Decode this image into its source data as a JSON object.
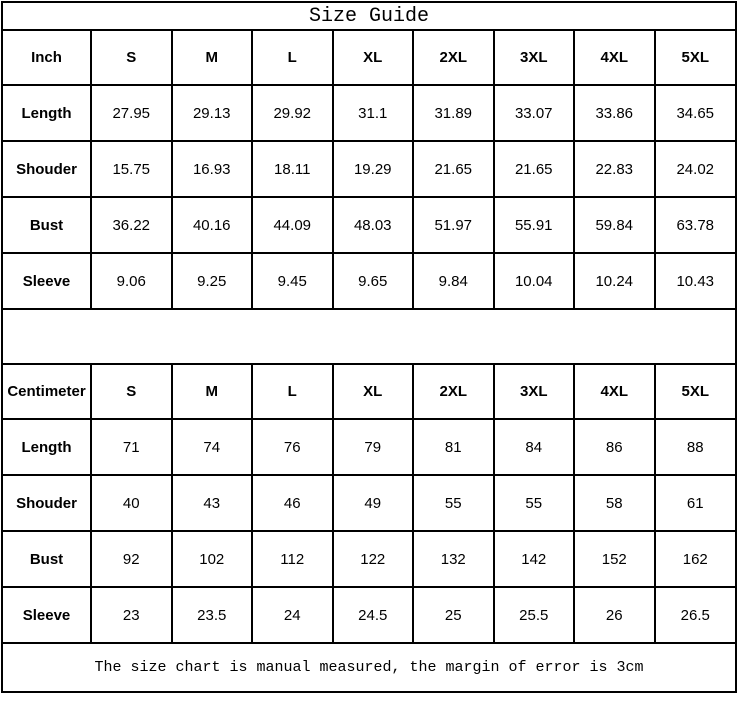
{
  "title": "Size Guide",
  "footer_note": "The size chart is manual measured, the margin of error is 3cm",
  "colors": {
    "text": "#000000",
    "border": "#000000",
    "background": "#ffffff"
  },
  "inch_table": {
    "unit": "Inch",
    "sizes": [
      "S",
      "M",
      "L",
      "XL",
      "2XL",
      "3XL",
      "4XL",
      "5XL"
    ],
    "rows": [
      {
        "label": "Length",
        "values": [
          "27.95",
          "29.13",
          "29.92",
          "31.1",
          "31.89",
          "33.07",
          "33.86",
          "34.65"
        ]
      },
      {
        "label": "Shouder",
        "values": [
          "15.75",
          "16.93",
          "18.11",
          "19.29",
          "21.65",
          "21.65",
          "22.83",
          "24.02"
        ]
      },
      {
        "label": "Bust",
        "values": [
          "36.22",
          "40.16",
          "44.09",
          "48.03",
          "51.97",
          "55.91",
          "59.84",
          "63.78"
        ]
      },
      {
        "label": "Sleeve",
        "values": [
          "9.06",
          "9.25",
          "9.45",
          "9.65",
          "9.84",
          "10.04",
          "10.24",
          "10.43"
        ]
      }
    ]
  },
  "cm_table": {
    "unit": "Centimeter",
    "sizes": [
      "S",
      "M",
      "L",
      "XL",
      "2XL",
      "3XL",
      "4XL",
      "5XL"
    ],
    "rows": [
      {
        "label": "Length",
        "values": [
          "71",
          "74",
          "76",
          "79",
          "81",
          "84",
          "86",
          "88"
        ]
      },
      {
        "label": "Shouder",
        "values": [
          "40",
          "43",
          "46",
          "49",
          "55",
          "55",
          "58",
          "61"
        ]
      },
      {
        "label": "Bust",
        "values": [
          "92",
          "102",
          "112",
          "122",
          "132",
          "142",
          "152",
          "162"
        ]
      },
      {
        "label": "Sleeve",
        "values": [
          "23",
          "23.5",
          "24",
          "24.5",
          "25",
          "25.5",
          "26",
          "26.5"
        ]
      }
    ]
  }
}
